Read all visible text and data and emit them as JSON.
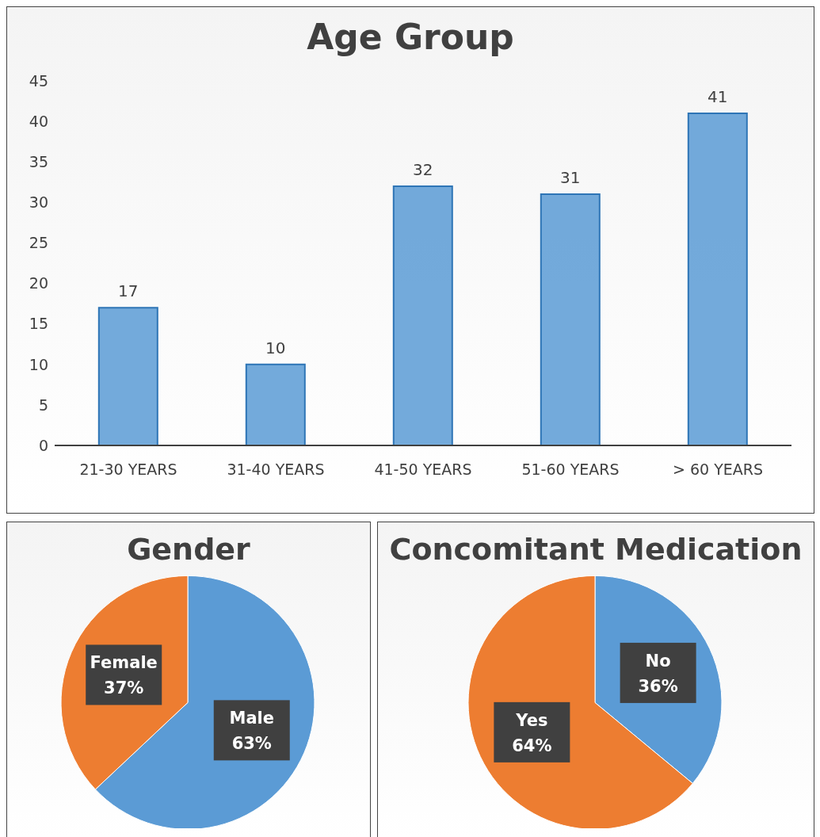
{
  "chart_data": [
    {
      "type": "bar",
      "title": "Age Group",
      "categories": [
        "21-30 YEARS",
        "31-40 YEARS",
        "41-50 YEARS",
        "51-60 YEARS",
        "> 60 YEARS"
      ],
      "values": [
        17,
        10,
        32,
        31,
        41
      ],
      "color": "#5b9bd5",
      "ylim": [
        0,
        45
      ],
      "yticks": [
        0,
        5,
        10,
        15,
        20,
        25,
        30,
        35,
        40,
        45
      ],
      "data_labels": true
    },
    {
      "type": "pie",
      "title": "Gender",
      "categories": [
        "Male",
        "Female"
      ],
      "values": [
        63,
        37
      ],
      "colors": [
        "#5b9bd5",
        "#ed7d31"
      ],
      "value_labels": [
        "63%",
        "37%"
      ]
    },
    {
      "type": "pie",
      "title": "Concomitant Medication",
      "categories": [
        "No",
        "Yes"
      ],
      "values": [
        36,
        64
      ],
      "colors": [
        "#5b9bd5",
        "#ed7d31"
      ],
      "value_labels": [
        "36%",
        "64%"
      ]
    }
  ]
}
